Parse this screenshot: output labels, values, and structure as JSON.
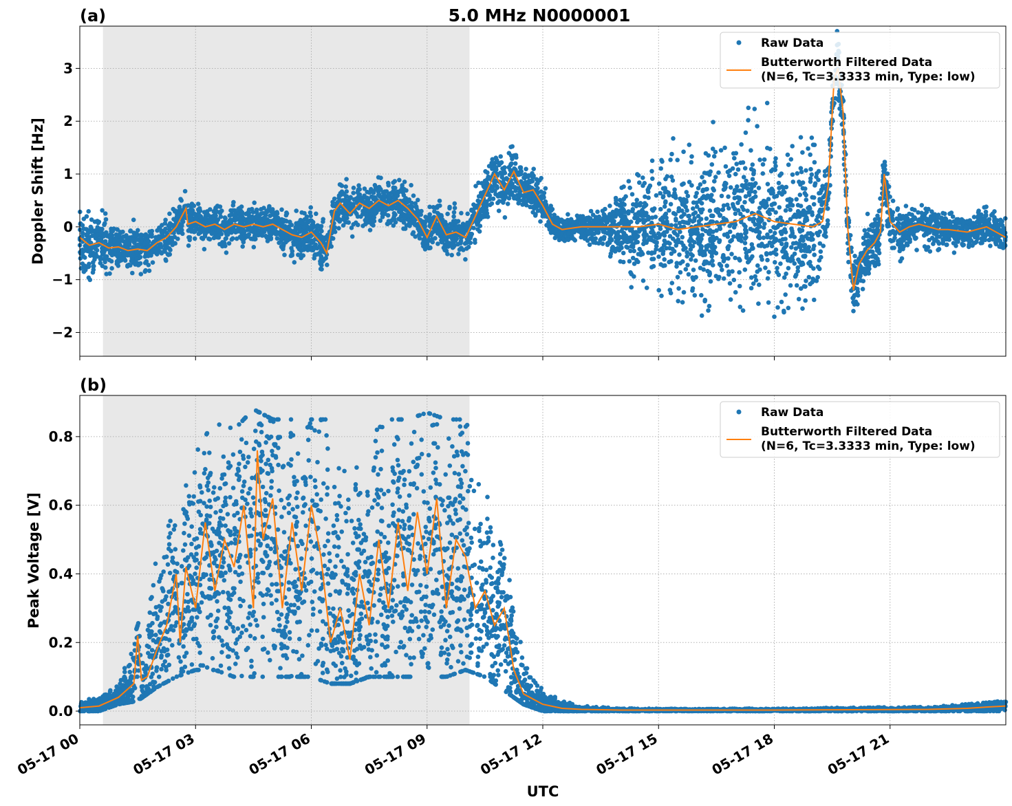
{
  "figure": {
    "title": "5.0 MHz N0000001",
    "xlabel": "UTC",
    "x_tick_labels": [
      "05-17 00",
      "05-17 03",
      "05-17 06",
      "05-17 09",
      "05-17 12",
      "05-17 15",
      "05-17 18",
      "05-17 21"
    ],
    "shaded_interval_hours": [
      0.6,
      10.1
    ],
    "colors": {
      "raw": "#1f77b4",
      "filtered": "#ff7f0e",
      "shade": "#e8e8e8",
      "grid": "#b0b0b0"
    }
  },
  "chart_data": [
    {
      "type": "scatter",
      "panel": "(a)",
      "ylabel": "Doppler Shift [Hz]",
      "xlim_hours": [
        0,
        24
      ],
      "ylim": [
        -2.45,
        3.8
      ],
      "y_ticks": [
        -2,
        -1,
        0,
        1,
        2,
        3
      ],
      "y_tick_labels": [
        "−2",
        "−1",
        "0",
        "1",
        "2",
        "3"
      ],
      "grid": true,
      "legend_placement": "top-right",
      "legend": {
        "raw": "Raw Data",
        "filtered_line1": "Butterworth Filtered Data",
        "filtered_line2": "(N=6, Tc=3.3333 min, Type: low)"
      },
      "series": [
        {
          "name": "Raw Data",
          "kind": "scatter",
          "spread": [
            [
              0.0,
              0.5
            ],
            [
              0.5,
              0.5
            ],
            [
              1.0,
              0.35
            ],
            [
              1.5,
              0.35
            ],
            [
              2.0,
              0.3
            ],
            [
              2.5,
              0.35
            ],
            [
              3.0,
              0.3
            ],
            [
              3.5,
              0.3
            ],
            [
              4.0,
              0.3
            ],
            [
              4.5,
              0.3
            ],
            [
              5.0,
              0.3
            ],
            [
              5.5,
              0.35
            ],
            [
              6.0,
              0.35
            ],
            [
              6.5,
              0.4
            ],
            [
              7.0,
              0.35
            ],
            [
              7.5,
              0.35
            ],
            [
              8.0,
              0.35
            ],
            [
              8.5,
              0.3
            ],
            [
              9.0,
              0.35
            ],
            [
              9.5,
              0.35
            ],
            [
              10.0,
              0.35
            ],
            [
              10.5,
              0.45
            ],
            [
              11.0,
              0.45
            ],
            [
              11.5,
              0.35
            ],
            [
              12.0,
              0.3
            ],
            [
              12.5,
              0.2
            ],
            [
              13.0,
              0.2
            ],
            [
              13.5,
              0.3
            ],
            [
              14.0,
              0.6
            ],
            [
              14.5,
              0.9
            ],
            [
              15.0,
              1.05
            ],
            [
              15.5,
              1.15
            ],
            [
              16.0,
              1.2
            ],
            [
              16.5,
              1.25
            ],
            [
              17.0,
              1.3
            ],
            [
              17.5,
              1.3
            ],
            [
              18.0,
              1.3
            ],
            [
              18.5,
              1.3
            ],
            [
              19.0,
              1.3
            ],
            [
              19.5,
              0.5
            ],
            [
              20.0,
              0.5
            ],
            [
              20.5,
              0.5
            ],
            [
              21.0,
              0.5
            ],
            [
              21.5,
              0.35
            ],
            [
              22.0,
              0.35
            ],
            [
              22.5,
              0.3
            ],
            [
              23.0,
              0.3
            ],
            [
              23.5,
              0.3
            ],
            [
              24.0,
              0.3
            ]
          ]
        },
        {
          "name": "Butterworth Filtered Data",
          "kind": "line",
          "points": [
            [
              0.0,
              -0.2
            ],
            [
              0.25,
              -0.35
            ],
            [
              0.5,
              -0.3
            ],
            [
              0.75,
              -0.4
            ],
            [
              1.0,
              -0.38
            ],
            [
              1.25,
              -0.45
            ],
            [
              1.5,
              -0.42
            ],
            [
              1.75,
              -0.45
            ],
            [
              2.0,
              -0.3
            ],
            [
              2.25,
              -0.2
            ],
            [
              2.5,
              0.0
            ],
            [
              2.75,
              0.35
            ],
            [
              2.8,
              0.05
            ],
            [
              3.0,
              0.1
            ],
            [
              3.25,
              0.0
            ],
            [
              3.5,
              0.05
            ],
            [
              3.75,
              -0.05
            ],
            [
              4.0,
              0.05
            ],
            [
              4.25,
              0.0
            ],
            [
              4.5,
              0.05
            ],
            [
              4.75,
              0.0
            ],
            [
              5.0,
              0.05
            ],
            [
              5.25,
              -0.05
            ],
            [
              5.5,
              -0.15
            ],
            [
              5.75,
              -0.2
            ],
            [
              6.0,
              -0.1
            ],
            [
              6.25,
              -0.3
            ],
            [
              6.4,
              -0.5
            ],
            [
              6.6,
              0.3
            ],
            [
              6.75,
              0.45
            ],
            [
              7.0,
              0.25
            ],
            [
              7.25,
              0.45
            ],
            [
              7.5,
              0.35
            ],
            [
              7.75,
              0.5
            ],
            [
              8.0,
              0.4
            ],
            [
              8.25,
              0.5
            ],
            [
              8.5,
              0.35
            ],
            [
              8.75,
              0.15
            ],
            [
              9.0,
              -0.2
            ],
            [
              9.25,
              0.2
            ],
            [
              9.5,
              -0.15
            ],
            [
              9.75,
              -0.1
            ],
            [
              10.0,
              -0.2
            ],
            [
              10.25,
              0.2
            ],
            [
              10.5,
              0.6
            ],
            [
              10.75,
              1.0
            ],
            [
              11.0,
              0.7
            ],
            [
              11.25,
              1.05
            ],
            [
              11.5,
              0.65
            ],
            [
              11.75,
              0.7
            ],
            [
              12.0,
              0.4
            ],
            [
              12.25,
              0.05
            ],
            [
              12.5,
              -0.05
            ],
            [
              13.0,
              0.0
            ],
            [
              13.5,
              0.0
            ],
            [
              14.0,
              0.0
            ],
            [
              14.5,
              0.0
            ],
            [
              15.0,
              0.05
            ],
            [
              15.5,
              -0.05
            ],
            [
              16.0,
              0.0
            ],
            [
              16.5,
              0.05
            ],
            [
              17.0,
              0.1
            ],
            [
              17.5,
              0.25
            ],
            [
              18.0,
              0.1
            ],
            [
              18.5,
              0.05
            ],
            [
              19.0,
              0.0
            ],
            [
              19.25,
              0.1
            ],
            [
              19.4,
              0.8
            ],
            [
              19.55,
              2.8
            ],
            [
              19.65,
              3.0
            ],
            [
              19.78,
              2.2
            ],
            [
              19.9,
              0.0
            ],
            [
              20.05,
              -1.2
            ],
            [
              20.2,
              -0.7
            ],
            [
              20.4,
              -0.45
            ],
            [
              20.6,
              -0.3
            ],
            [
              20.75,
              -0.1
            ],
            [
              20.85,
              1.0
            ],
            [
              21.0,
              0.1
            ],
            [
              21.25,
              -0.1
            ],
            [
              21.5,
              0.0
            ],
            [
              21.75,
              0.05
            ],
            [
              22.0,
              0.0
            ],
            [
              22.25,
              -0.05
            ],
            [
              22.5,
              -0.05
            ],
            [
              23.0,
              -0.1
            ],
            [
              23.5,
              0.0
            ],
            [
              24.0,
              -0.2
            ]
          ]
        }
      ]
    },
    {
      "type": "scatter",
      "panel": "(b)",
      "ylabel": "Peak Voltage [V]",
      "xlim_hours": [
        0,
        24
      ],
      "ylim": [
        -0.04,
        0.92
      ],
      "y_ticks": [
        0,
        0.2,
        0.4,
        0.6,
        0.8
      ],
      "y_tick_labels": [
        "0.0",
        "0.2",
        "0.4",
        "0.6",
        "0.8"
      ],
      "grid": true,
      "legend_placement": "top-right",
      "legend": {
        "raw": "Raw Data",
        "filtered_line1": "Butterworth Filtered Data",
        "filtered_line2": "(N=6, Tc=3.3333 min, Type: low)"
      },
      "series": [
        {
          "name": "Raw Data",
          "kind": "scatter",
          "band": [
            [
              0.0,
              0.0,
              0.03
            ],
            [
              0.5,
              0.0,
              0.04
            ],
            [
              1.0,
              0.02,
              0.08
            ],
            [
              1.5,
              0.03,
              0.25
            ],
            [
              2.0,
              0.07,
              0.45
            ],
            [
              2.5,
              0.1,
              0.6
            ],
            [
              3.0,
              0.12,
              0.75
            ],
            [
              3.5,
              0.12,
              0.85
            ],
            [
              4.0,
              0.1,
              0.82
            ],
            [
              4.5,
              0.1,
              0.88
            ],
            [
              5.0,
              0.1,
              0.85
            ],
            [
              5.5,
              0.1,
              0.85
            ],
            [
              6.0,
              0.1,
              0.85
            ],
            [
              6.5,
              0.08,
              0.85
            ],
            [
              7.0,
              0.08,
              0.82
            ],
            [
              7.5,
              0.1,
              0.8
            ],
            [
              8.0,
              0.1,
              0.85
            ],
            [
              8.5,
              0.1,
              0.85
            ],
            [
              9.0,
              0.1,
              0.87
            ],
            [
              9.5,
              0.1,
              0.85
            ],
            [
              10.0,
              0.12,
              0.85
            ],
            [
              10.5,
              0.1,
              0.65
            ],
            [
              11.0,
              0.06,
              0.45
            ],
            [
              11.5,
              0.02,
              0.2
            ],
            [
              12.0,
              0.0,
              0.06
            ],
            [
              12.5,
              0.0,
              0.03
            ],
            [
              13.0,
              0.0,
              0.015
            ],
            [
              14.0,
              0.0,
              0.008
            ],
            [
              16.0,
              0.0,
              0.006
            ],
            [
              18.0,
              0.0,
              0.008
            ],
            [
              20.0,
              0.0,
              0.01
            ],
            [
              22.0,
              0.0,
              0.012
            ],
            [
              23.0,
              0.0,
              0.02
            ],
            [
              24.0,
              0.0,
              0.03
            ]
          ]
        },
        {
          "name": "Butterworth Filtered Data",
          "kind": "line",
          "points": [
            [
              0.0,
              0.01
            ],
            [
              0.5,
              0.015
            ],
            [
              1.0,
              0.04
            ],
            [
              1.4,
              0.08
            ],
            [
              1.5,
              0.22
            ],
            [
              1.6,
              0.09
            ],
            [
              1.75,
              0.1
            ],
            [
              2.0,
              0.18
            ],
            [
              2.25,
              0.25
            ],
            [
              2.5,
              0.4
            ],
            [
              2.6,
              0.2
            ],
            [
              2.75,
              0.42
            ],
            [
              3.0,
              0.3
            ],
            [
              3.25,
              0.55
            ],
            [
              3.5,
              0.35
            ],
            [
              3.75,
              0.5
            ],
            [
              4.0,
              0.42
            ],
            [
              4.25,
              0.6
            ],
            [
              4.5,
              0.3
            ],
            [
              4.6,
              0.76
            ],
            [
              4.75,
              0.5
            ],
            [
              5.0,
              0.62
            ],
            [
              5.25,
              0.3
            ],
            [
              5.5,
              0.55
            ],
            [
              5.75,
              0.35
            ],
            [
              6.0,
              0.6
            ],
            [
              6.25,
              0.45
            ],
            [
              6.5,
              0.2
            ],
            [
              6.75,
              0.3
            ],
            [
              7.0,
              0.15
            ],
            [
              7.25,
              0.4
            ],
            [
              7.5,
              0.25
            ],
            [
              7.75,
              0.5
            ],
            [
              8.0,
              0.3
            ],
            [
              8.25,
              0.55
            ],
            [
              8.5,
              0.35
            ],
            [
              8.75,
              0.58
            ],
            [
              9.0,
              0.4
            ],
            [
              9.25,
              0.62
            ],
            [
              9.5,
              0.3
            ],
            [
              9.75,
              0.5
            ],
            [
              10.0,
              0.45
            ],
            [
              10.25,
              0.3
            ],
            [
              10.5,
              0.35
            ],
            [
              10.75,
              0.25
            ],
            [
              11.0,
              0.3
            ],
            [
              11.25,
              0.12
            ],
            [
              11.5,
              0.05
            ],
            [
              12.0,
              0.02
            ],
            [
              12.5,
              0.008
            ],
            [
              13.0,
              0.005
            ],
            [
              14.0,
              0.003
            ],
            [
              16.0,
              0.003
            ],
            [
              18.0,
              0.003
            ],
            [
              20.0,
              0.004
            ],
            [
              22.0,
              0.005
            ],
            [
              23.0,
              0.008
            ],
            [
              23.5,
              0.012
            ],
            [
              24.0,
              0.015
            ]
          ]
        }
      ]
    }
  ]
}
